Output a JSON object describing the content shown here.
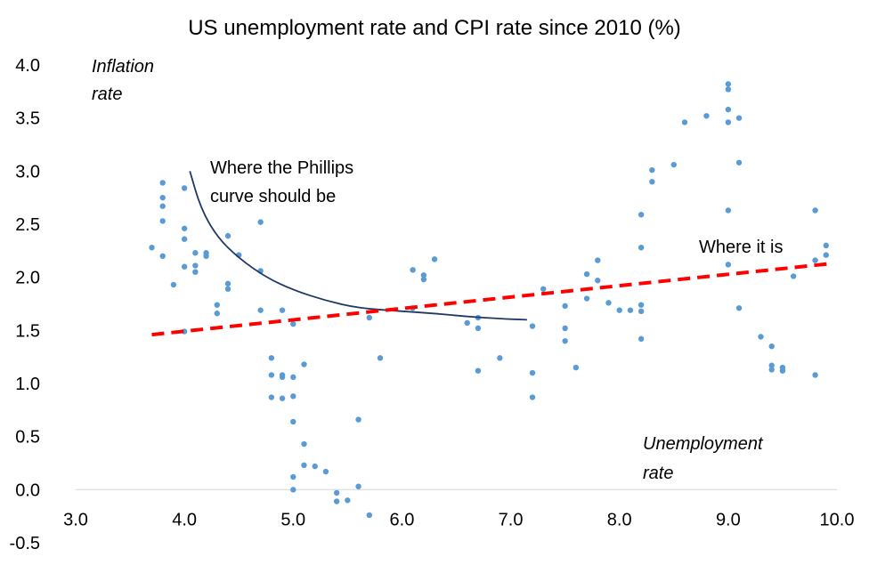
{
  "chart_data": {
    "type": "scatter",
    "title": "US unemployment rate and CPI rate since 2010 (%)",
    "xlabel": "Unemployment rate",
    "ylabel": "Inflation rate",
    "ylabel_lines": [
      "Inflation",
      "rate"
    ],
    "xlabel_lines": [
      "Unemployment",
      "rate"
    ],
    "xlim": [
      3.0,
      10.0
    ],
    "ylim": [
      -0.5,
      4.0
    ],
    "x_ticks": [
      "3.0",
      "4.0",
      "5.0",
      "6.0",
      "7.0",
      "8.0",
      "9.0",
      "10.0"
    ],
    "y_ticks": [
      "-0.5",
      "0.0",
      "0.5",
      "1.0",
      "1.5",
      "2.0",
      "2.5",
      "3.0",
      "3.5",
      "4.0"
    ],
    "grid": false,
    "point_color": "#5b9bd5",
    "points": [
      [
        3.7,
        2.28
      ],
      [
        3.8,
        2.89
      ],
      [
        3.8,
        2.75
      ],
      [
        3.8,
        2.67
      ],
      [
        3.8,
        2.53
      ],
      [
        3.8,
        2.2
      ],
      [
        3.9,
        1.93
      ],
      [
        4.0,
        2.84
      ],
      [
        4.0,
        2.46
      ],
      [
        4.0,
        2.36
      ],
      [
        4.0,
        2.1
      ],
      [
        4.0,
        1.49
      ],
      [
        4.1,
        2.23
      ],
      [
        4.1,
        2.11
      ],
      [
        4.1,
        2.05
      ],
      [
        4.2,
        2.23
      ],
      [
        4.2,
        2.2
      ],
      [
        4.3,
        1.74
      ],
      [
        4.3,
        1.66
      ],
      [
        4.4,
        2.39
      ],
      [
        4.4,
        1.94
      ],
      [
        4.4,
        1.89
      ],
      [
        4.5,
        2.21
      ],
      [
        4.7,
        2.52
      ],
      [
        4.7,
        2.06
      ],
      [
        4.7,
        1.69
      ],
      [
        4.8,
        1.24
      ],
      [
        4.8,
        1.08
      ],
      [
        4.8,
        0.87
      ],
      [
        4.9,
        1.69
      ],
      [
        4.9,
        1.08
      ],
      [
        4.9,
        1.06
      ],
      [
        4.9,
        0.86
      ],
      [
        5.0,
        1.56
      ],
      [
        5.0,
        1.06
      ],
      [
        5.0,
        0.88
      ],
      [
        5.0,
        0.64
      ],
      [
        5.0,
        0.12
      ],
      [
        5.0,
        0.0
      ],
      [
        5.1,
        1.18
      ],
      [
        5.1,
        0.43
      ],
      [
        5.1,
        0.23
      ],
      [
        5.2,
        0.22
      ],
      [
        5.3,
        0.17
      ],
      [
        5.4,
        -0.03
      ],
      [
        5.4,
        -0.11
      ],
      [
        5.5,
        -0.1
      ],
      [
        5.6,
        0.66
      ],
      [
        5.6,
        0.03
      ],
      [
        5.7,
        1.62
      ],
      [
        5.7,
        -0.24
      ],
      [
        5.8,
        1.24
      ],
      [
        6.1,
        2.07
      ],
      [
        6.2,
        2.02
      ],
      [
        6.2,
        1.98
      ],
      [
        6.1,
        1.71
      ],
      [
        6.3,
        2.17
      ],
      [
        6.6,
        1.57
      ],
      [
        6.7,
        1.62
      ],
      [
        6.7,
        1.52
      ],
      [
        6.7,
        1.12
      ],
      [
        6.9,
        1.24
      ],
      [
        7.2,
        1.54
      ],
      [
        7.2,
        1.1
      ],
      [
        7.2,
        0.87
      ],
      [
        7.3,
        1.89
      ],
      [
        7.5,
        1.73
      ],
      [
        7.5,
        1.52
      ],
      [
        7.5,
        1.4
      ],
      [
        7.6,
        1.15
      ],
      [
        7.7,
        2.03
      ],
      [
        7.7,
        1.8
      ],
      [
        7.8,
        2.16
      ],
      [
        7.8,
        1.97
      ],
      [
        7.9,
        1.76
      ],
      [
        8.0,
        1.69
      ],
      [
        8.1,
        1.69
      ],
      [
        8.2,
        2.59
      ],
      [
        8.2,
        2.28
      ],
      [
        8.2,
        1.74
      ],
      [
        8.2,
        1.68
      ],
      [
        8.2,
        1.42
      ],
      [
        8.3,
        3.01
      ],
      [
        8.3,
        2.9
      ],
      [
        8.5,
        3.06
      ],
      [
        8.6,
        3.46
      ],
      [
        8.8,
        3.52
      ],
      [
        9.0,
        3.82
      ],
      [
        9.0,
        3.77
      ],
      [
        9.0,
        3.58
      ],
      [
        9.0,
        3.46
      ],
      [
        9.0,
        2.63
      ],
      [
        9.0,
        2.12
      ],
      [
        9.1,
        3.5
      ],
      [
        9.1,
        3.08
      ],
      [
        9.1,
        1.71
      ],
      [
        9.3,
        1.44
      ],
      [
        9.4,
        1.35
      ],
      [
        9.4,
        1.17
      ],
      [
        9.4,
        1.13
      ],
      [
        9.5,
        1.15
      ],
      [
        9.5,
        1.12
      ],
      [
        9.6,
        2.01
      ],
      [
        9.8,
        2.63
      ],
      [
        9.8,
        2.16
      ],
      [
        9.8,
        1.08
      ],
      [
        9.9,
        2.3
      ],
      [
        9.9,
        2.21
      ]
    ],
    "trend_line": {
      "label": "Where it is",
      "color": "#ff0000",
      "style": "dashed",
      "points": [
        [
          3.7,
          1.46
        ],
        [
          9.95,
          2.13
        ]
      ]
    },
    "phillips_curve": {
      "label_lines": [
        "Where the Phillips",
        "curve should be"
      ],
      "color": "#1f3864",
      "points": [
        [
          4.05,
          3.0
        ],
        [
          4.15,
          2.65
        ],
        [
          4.3,
          2.38
        ],
        [
          4.5,
          2.18
        ],
        [
          4.75,
          2.0
        ],
        [
          5.0,
          1.88
        ],
        [
          5.3,
          1.78
        ],
        [
          5.6,
          1.71
        ],
        [
          6.0,
          1.68
        ],
        [
          6.3,
          1.66
        ],
        [
          6.6,
          1.63
        ],
        [
          6.9,
          1.61
        ],
        [
          7.15,
          1.6
        ]
      ]
    }
  }
}
